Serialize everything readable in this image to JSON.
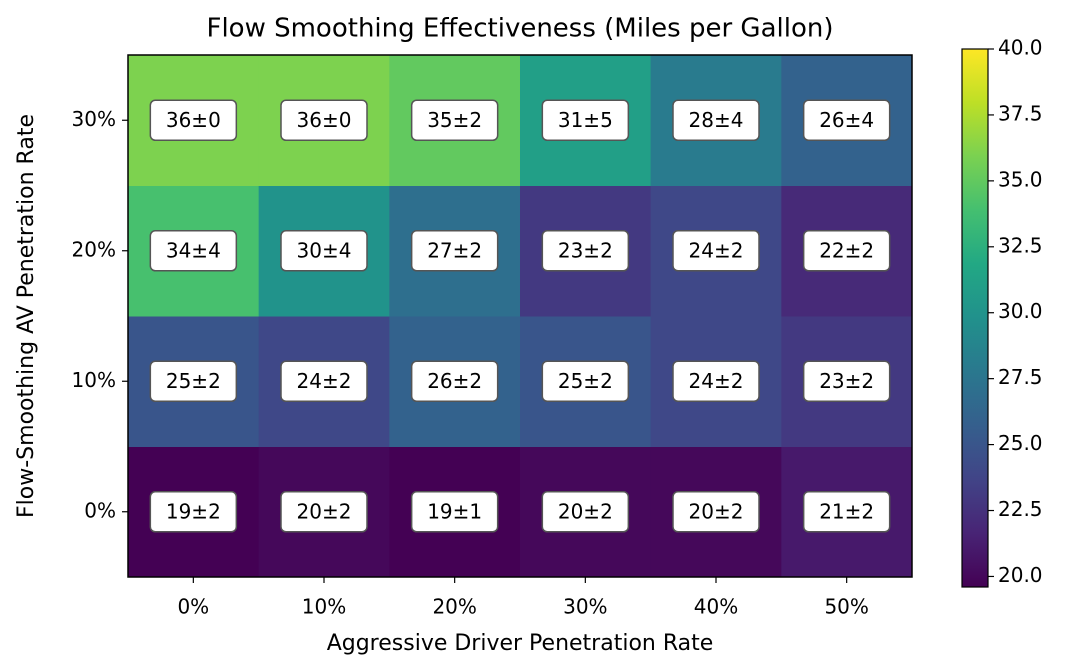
{
  "chart_data": {
    "type": "heatmap",
    "title": "Flow Smoothing Effectiveness (Miles per Gallon)",
    "x_label": "Aggressive Driver Penetration Rate",
    "y_label": "Flow-Smoothing AV Penetration Rate",
    "x": [
      "0%",
      "10%",
      "20%",
      "30%",
      "40%",
      "50%"
    ],
    "y": [
      "0%",
      "10%",
      "20%",
      "30%"
    ],
    "values": [
      [
        19,
        20,
        19,
        20,
        20,
        21
      ],
      [
        25,
        24,
        26,
        25,
        24,
        23
      ],
      [
        34,
        30,
        27,
        23,
        24,
        22
      ],
      [
        36,
        36,
        35,
        31,
        28,
        26
      ]
    ],
    "errors": [
      [
        2,
        2,
        1,
        2,
        2,
        2
      ],
      [
        2,
        2,
        2,
        2,
        2,
        2
      ],
      [
        4,
        4,
        2,
        2,
        2,
        2
      ],
      [
        0,
        0,
        2,
        5,
        4,
        4
      ]
    ],
    "value_labels": [
      [
        "19±2",
        "20±2",
        "19±1",
        "20±2",
        "20±2",
        "21±2"
      ],
      [
        "25±2",
        "24±2",
        "26±2",
        "25±2",
        "24±2",
        "23±2"
      ],
      [
        "34±4",
        "30±4",
        "27±2",
        "23±2",
        "24±2",
        "22±2"
      ],
      [
        "36±0",
        "36±0",
        "35±2",
        "31±5",
        "28±4",
        "26±4"
      ]
    ],
    "colormap": "viridis",
    "clim": [
      19.6,
      40
    ],
    "cticks": [
      {
        "value": 20,
        "label": "20.0"
      },
      {
        "value": 22.5,
        "label": "22.5"
      },
      {
        "value": 25,
        "label": "25.0"
      },
      {
        "value": 27.5,
        "label": "27.5"
      },
      {
        "value": 30,
        "label": "30.0"
      },
      {
        "value": 32.5,
        "label": "32.5"
      },
      {
        "value": 35,
        "label": "35.0"
      },
      {
        "value": 37.5,
        "label": "37.5"
      },
      {
        "value": 40,
        "label": "40.0"
      }
    ]
  }
}
